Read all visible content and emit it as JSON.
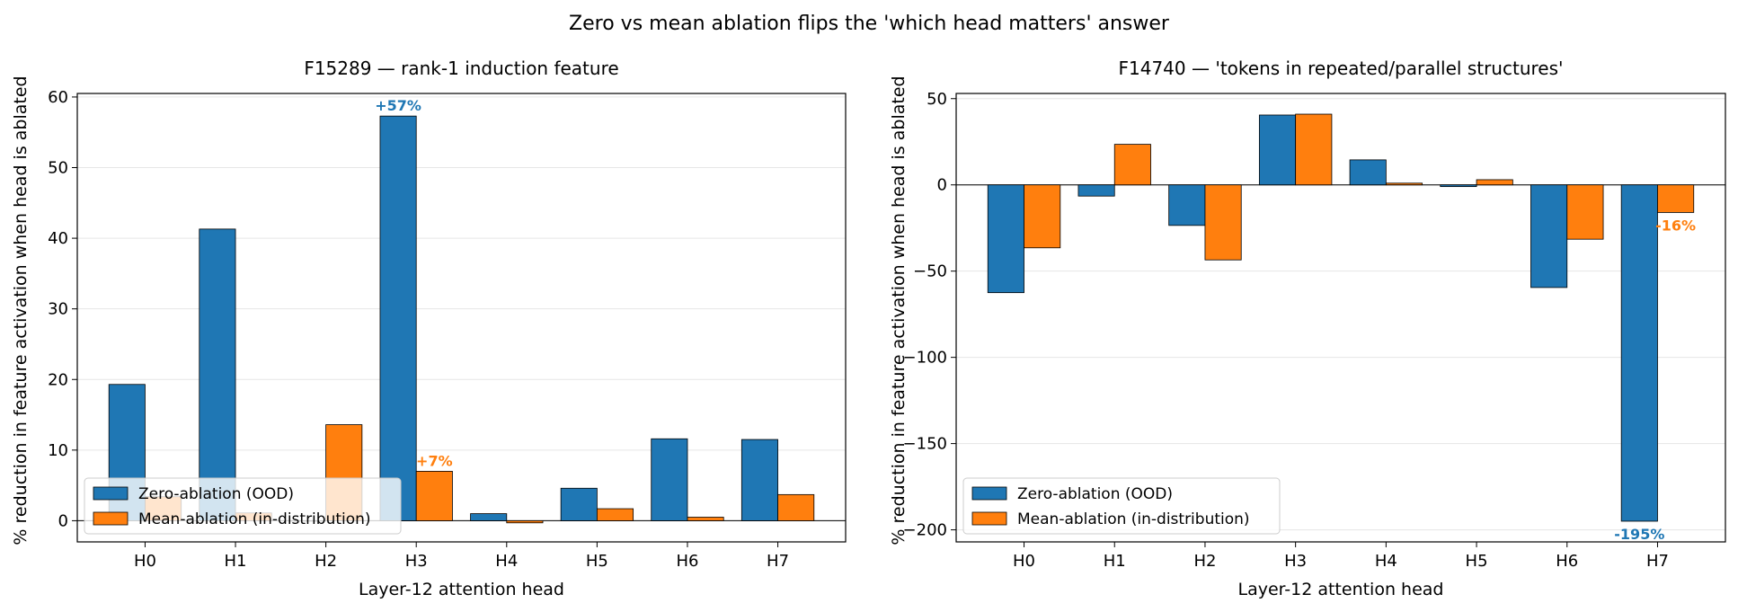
{
  "figure": {
    "suptitle": "Zero vs mean ablation flips the 'which head matters' answer"
  },
  "colors": {
    "zero": "#1f77b4",
    "mean": "#ff7f0e",
    "grid": "#e6e6e6",
    "axis": "#000000"
  },
  "chart_data": [
    {
      "type": "bar",
      "title": "F15289 — rank-1 induction feature",
      "xlabel": "Layer-12 attention head",
      "ylabel": "% reduction in feature activation when head is ablated",
      "categories": [
        "H0",
        "H1",
        "H2",
        "H3",
        "H4",
        "H5",
        "H6",
        "H7"
      ],
      "series": [
        {
          "name": "Zero-ablation (OOD)",
          "values": [
            19.3,
            41.3,
            0.0,
            57.3,
            1.0,
            4.6,
            11.6,
            11.5
          ]
        },
        {
          "name": "Mean-ablation (in-distribution)",
          "values": [
            3.4,
            1.1,
            13.6,
            7.0,
            -0.3,
            1.7,
            0.5,
            3.7
          ]
        }
      ],
      "ylim": [
        -3,
        60.5
      ],
      "yticks": [
        0,
        10,
        20,
        30,
        40,
        50,
        60
      ],
      "grid": true,
      "legend": "lower-left",
      "annotations": [
        {
          "text": "+57%",
          "series": 0,
          "index": 3
        },
        {
          "text": "+7%",
          "series": 1,
          "index": 3
        }
      ]
    },
    {
      "type": "bar",
      "title": "F14740 — 'tokens in repeated/parallel structures'",
      "xlabel": "Layer-12 attention head",
      "ylabel": "% reduction in feature activation when head is ablated",
      "categories": [
        "H0",
        "H1",
        "H2",
        "H3",
        "H4",
        "H5",
        "H6",
        "H7"
      ],
      "series": [
        {
          "name": "Zero-ablation (OOD)",
          "values": [
            -62.5,
            -6.5,
            -23.5,
            40.5,
            14.5,
            -1.0,
            -59.5,
            -195.0
          ]
        },
        {
          "name": "Mean-ablation (in-distribution)",
          "values": [
            -36.5,
            23.5,
            -43.5,
            41.0,
            1.0,
            3.0,
            -31.5,
            -16.0
          ]
        }
      ],
      "ylim": [
        -207,
        53
      ],
      "yticks": [
        -200,
        -150,
        -100,
        -50,
        0,
        50
      ],
      "grid": true,
      "legend": "lower-left",
      "annotations": [
        {
          "text": "-195%",
          "series": 0,
          "index": 7
        },
        {
          "text": "-16%",
          "series": 1,
          "index": 7
        }
      ]
    }
  ]
}
